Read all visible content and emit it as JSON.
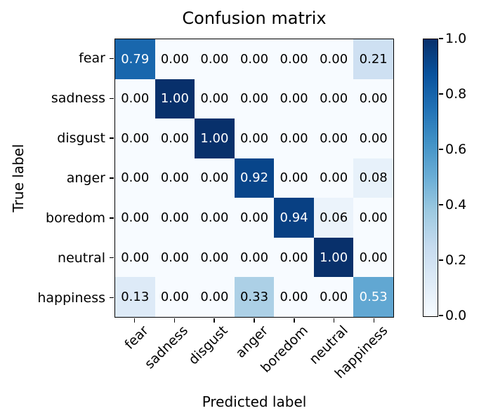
{
  "figure": {
    "background": "#ffffff",
    "spine_color": "#000000"
  },
  "chart_data": {
    "type": "heatmap",
    "title": "Confusion matrix",
    "xlabel": "Predicted label",
    "ylabel": "True label",
    "x_categories": [
      "fear",
      "sadness",
      "disgust",
      "anger",
      "boredom",
      "neutral",
      "happiness"
    ],
    "y_categories": [
      "fear",
      "sadness",
      "disgust",
      "anger",
      "boredom",
      "neutral",
      "happiness"
    ],
    "matrix": [
      [
        0.79,
        0.0,
        0.0,
        0.0,
        0.0,
        0.0,
        0.21
      ],
      [
        0.0,
        1.0,
        0.0,
        0.0,
        0.0,
        0.0,
        0.0
      ],
      [
        0.0,
        0.0,
        1.0,
        0.0,
        0.0,
        0.0,
        0.0
      ],
      [
        0.0,
        0.0,
        0.0,
        0.92,
        0.0,
        0.0,
        0.08
      ],
      [
        0.0,
        0.0,
        0.0,
        0.0,
        0.94,
        0.06,
        0.0
      ],
      [
        0.0,
        0.0,
        0.0,
        0.0,
        0.0,
        1.0,
        0.0
      ],
      [
        0.13,
        0.0,
        0.0,
        0.33,
        0.0,
        0.0,
        0.53
      ]
    ],
    "value_decimals": 2,
    "vmin": 0.0,
    "vmax": 1.0,
    "grid": false,
    "x_tick_rotation_deg": 45,
    "colormap": "Blues",
    "colormap_stops": [
      {
        "pos": 0.0,
        "color": "#f7fbff"
      },
      {
        "pos": 0.125,
        "color": "#deebf7"
      },
      {
        "pos": 0.25,
        "color": "#c6dbef"
      },
      {
        "pos": 0.375,
        "color": "#9ecae1"
      },
      {
        "pos": 0.5,
        "color": "#6baed6"
      },
      {
        "pos": 0.625,
        "color": "#4292c6"
      },
      {
        "pos": 0.75,
        "color": "#2171b5"
      },
      {
        "pos": 0.875,
        "color": "#08519c"
      },
      {
        "pos": 1.0,
        "color": "#08306b"
      }
    ],
    "text_color_threshold": 0.5,
    "cell_text_color_light": "#ffffff",
    "cell_text_color_dark": "#000000",
    "colorbar": {
      "position": "right",
      "tick_values": [
        1.0,
        0.8,
        0.6,
        0.4,
        0.2,
        0.0
      ],
      "tick_labels": [
        "1.0",
        "0.8",
        "0.6",
        "0.4",
        "0.2",
        "0.0"
      ]
    }
  }
}
